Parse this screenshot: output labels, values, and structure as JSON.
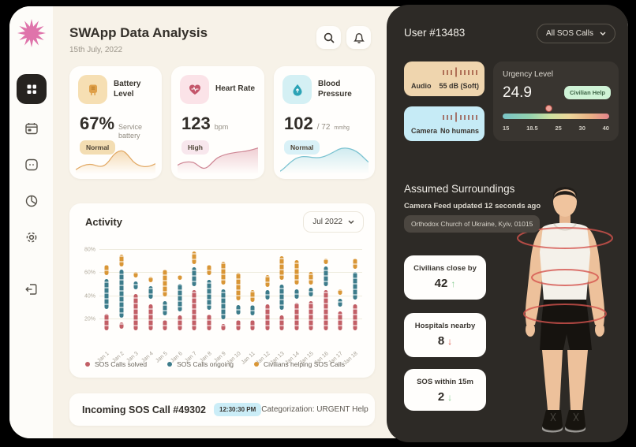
{
  "header": {
    "title": "SWApp Data Analysis",
    "date": "15th July, 2022",
    "icons": [
      "search-icon",
      "bell-icon"
    ]
  },
  "sidebar": {
    "logo": "starburst-logo",
    "logo_color": "#df74ab",
    "items": [
      {
        "icon": "dashboard-grid-icon",
        "active": true
      },
      {
        "icon": "calendar-icon",
        "active": false
      },
      {
        "icon": "chat-icon",
        "active": false
      },
      {
        "icon": "pie-chart-icon",
        "active": false
      },
      {
        "icon": "settings-gear-icon",
        "active": false
      },
      {
        "icon": "logout-icon",
        "active": false
      }
    ]
  },
  "metrics": [
    {
      "title": "Battery Level",
      "value": "67%",
      "unit": "Service battery",
      "badge": "Normal",
      "icon": "battery-charger-icon",
      "color": "#dfa049"
    },
    {
      "title": "Heart Rate",
      "value": "123",
      "unit": "bpm",
      "badge": "High",
      "icon": "heart-pulse-icon",
      "color": "#c4566b"
    },
    {
      "title": "Blood Pressure",
      "value": "102",
      "unit": "/ 72",
      "unit_small": "mmhg",
      "badge": "Normal",
      "icon": "water-drop-icon",
      "color": "#2ba3b6"
    }
  ],
  "activity": {
    "title": "Activity",
    "period": "Jul 2022",
    "chart_data": {
      "type": "bar",
      "stacked": true,
      "title": "Activity",
      "unit": "%",
      "ymax": 85,
      "yticks": [
        "20%",
        "40%",
        "60%",
        "80%"
      ],
      "categories": [
        "Jan 1",
        "Jan 2",
        "Jan 3",
        "Jan 4",
        "Jan 5",
        "Jan 6",
        "Jan 7",
        "Jan 8",
        "Jan 9",
        "Jan 10",
        "Jan 11",
        "Jan 12",
        "Jan 13",
        "Jan 14",
        "Jan 15",
        "Jan 16",
        "Jan 17",
        "Jan 18"
      ],
      "series": [
        {
          "name": "SOS Calls solved",
          "color": "#c25f66",
          "segments": [
            [
              10,
              25
            ],
            [
              12,
              17
            ],
            [
              10,
              42
            ],
            [
              10,
              33
            ],
            [
              10,
              19
            ],
            [
              10,
              23
            ],
            [
              10,
              45
            ],
            [
              10,
              24
            ],
            [
              10,
              16
            ],
            [
              10,
              19
            ],
            [
              10,
              19
            ],
            [
              10,
              33
            ],
            [
              10,
              23
            ],
            [
              10,
              34
            ],
            [
              10,
              36
            ],
            [
              10,
              45
            ],
            [
              10,
              27
            ],
            [
              10,
              33
            ]
          ]
        },
        {
          "name": "SOS Calls ongoing",
          "color": "#3d7c8b",
          "segments": [
            [
              29,
              55
            ],
            [
              21,
              63
            ],
            [
              46,
              53
            ],
            [
              38,
              49
            ],
            [
              23,
              36
            ],
            [
              27,
              51
            ],
            [
              49,
              65
            ],
            [
              28,
              54
            ],
            [
              20,
              46
            ],
            [
              24,
              32
            ],
            [
              23,
              32
            ],
            [
              37,
              45
            ],
            [
              28,
              50
            ],
            [
              38,
              46
            ],
            [
              40,
              47
            ],
            [
              49,
              66
            ],
            [
              31,
              38
            ],
            [
              37,
              61
            ]
          ]
        },
        {
          "name": "Civilians helping SOS Calls",
          "color": "#d99636",
          "segments": [
            [
              58,
              67
            ],
            [
              66,
              76
            ],
            [
              56,
              61
            ],
            [
              52,
              57
            ],
            [
              40,
              63
            ],
            [
              54,
              58
            ],
            [
              68,
              79
            ],
            [
              58,
              67
            ],
            [
              50,
              70
            ],
            [
              36,
              60
            ],
            [
              35,
              45
            ],
            [
              48,
              58
            ],
            [
              54,
              75
            ],
            [
              50,
              71
            ],
            [
              50,
              61
            ],
            [
              68,
              73
            ],
            [
              41,
              46
            ],
            [
              64,
              73
            ]
          ]
        }
      ],
      "legend_position": "bottom"
    }
  },
  "incoming": {
    "title": "Incoming SOS Call #49302",
    "time": "12:30:30 PM",
    "categorization": "Categorization: URGENT Help"
  },
  "panel": {
    "user": "User #13483",
    "filter": "All SOS Calls",
    "audio": {
      "label": "Audio",
      "value": "55 dB (Soft)",
      "icon": "level-ticks-icon",
      "bg": "#efd5ae"
    },
    "camera": {
      "label": "Camera",
      "value": "No humans",
      "icon": "level-ticks-icon",
      "bg": "#c6ebf6"
    },
    "urgency": {
      "title": "Urgency Level",
      "value": "24.9",
      "badge": "Civilian Help",
      "badge_bg": "#cff3d6",
      "scale": [
        "15",
        "18.5",
        "25",
        "30",
        "40"
      ]
    },
    "surroundings": {
      "title": "Assumed Surroundings",
      "subtitle": "Camera Feed updated 12 seconds ago",
      "location": "Orthodox Church of Ukraine, Kyiv, 01015"
    },
    "stats": [
      {
        "label": "Civilians close by",
        "value": "42",
        "trend": "up",
        "trend_color": "#86cb90"
      },
      {
        "label": "Hospitals nearby",
        "value": "8",
        "trend": "down",
        "trend_color": "#d9584c"
      },
      {
        "label": "SOS within 15m",
        "value": "2",
        "trend": "down",
        "trend_color": "#86cb90"
      }
    ]
  },
  "colors": {
    "page_bg": "#000000",
    "main_bg": "#f7f2e8",
    "card_bg": "#fffefc",
    "panel_bg": "#2d2a26",
    "urgency_card_bg": "#393530",
    "time_badge_bg": "#cbedf7",
    "accent_pink": "#df74ab"
  }
}
